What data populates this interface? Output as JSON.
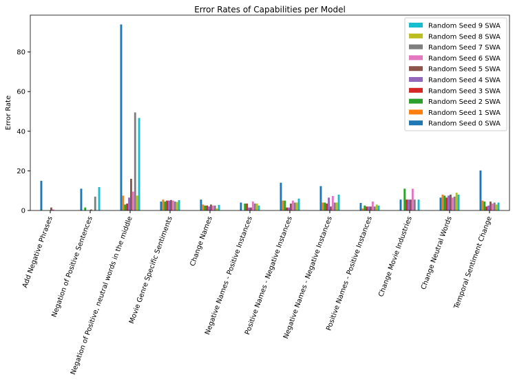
{
  "chart_data": {
    "type": "bar",
    "title": "Error Rates of Capabilities per Model",
    "y_label": "Error Rate",
    "categories": [
      "Add Negative Phrases",
      "Negation of Positive Sentences",
      "Negation of Positive, neutral words in the middle",
      "Movie Genre Specific Sentiments",
      "Change Names",
      "Negative Names - Positive Instances",
      "Positive Names - Negative Instances",
      "Negative Names - Negative Instances",
      "Positive Names - Positive Instances",
      "Change Movie Industries",
      "Change Neutral Words",
      "Temporal Sentiment Change"
    ],
    "series": [
      {
        "name": "Random Seed 0 SWA",
        "color": "#1f77b4",
        "values": [
          15,
          11,
          93.9,
          4.5,
          5.5,
          4,
          14,
          12.3,
          3.8,
          5.5,
          6.5,
          20.2
        ]
      },
      {
        "name": "Random Seed 1 SWA",
        "color": "#ff7f0e",
        "values": [
          0,
          0,
          7.5,
          5.5,
          3,
          0,
          5,
          4,
          1,
          0,
          8,
          5
        ]
      },
      {
        "name": "Random Seed 2 SWA",
        "color": "#2ca02c",
        "values": [
          0,
          1.5,
          3,
          4.5,
          2.5,
          3.5,
          5,
          4,
          2.5,
          11,
          7.5,
          4.5
        ]
      },
      {
        "name": "Random Seed 3 SWA",
        "color": "#d62728",
        "values": [
          0,
          0,
          3.5,
          5,
          2.5,
          3.5,
          1.5,
          3.5,
          2,
          5.5,
          6.5,
          2
        ]
      },
      {
        "name": "Random Seed 4 SWA",
        "color": "#9467bd",
        "values": [
          0,
          0,
          6.5,
          5,
          2,
          1.5,
          1.5,
          6.5,
          2,
          5.5,
          7.5,
          2.5
        ]
      },
      {
        "name": "Random Seed 5 SWA",
        "color": "#8c564b",
        "values": [
          1.5,
          0.5,
          16,
          5.3,
          3,
          1.5,
          3.5,
          2,
          2,
          5.5,
          8,
          4.5
        ]
      },
      {
        "name": "Random Seed 6 SWA",
        "color": "#e377c2",
        "values": [
          0.5,
          0,
          9.5,
          5,
          2.5,
          4.5,
          5,
          7.3,
          4.5,
          11,
          6.5,
          3.5
        ]
      },
      {
        "name": "Random Seed 7 SWA",
        "color": "#7f7f7f",
        "values": [
          0,
          7,
          49.5,
          4.5,
          2.5,
          3.5,
          4,
          4,
          2,
          5.5,
          7,
          4
        ]
      },
      {
        "name": "Random Seed 8 SWA",
        "color": "#bcbd22",
        "values": [
          0,
          0,
          7.5,
          4.3,
          1,
          3.5,
          4,
          4,
          3,
          0,
          9,
          3
        ]
      },
      {
        "name": "Random Seed 9 SWA",
        "color": "#17becf",
        "values": [
          0,
          11.8,
          46.7,
          5.2,
          2.8,
          2.5,
          6,
          8,
          2.5,
          5.5,
          8,
          4
        ]
      }
    ],
    "ylim": [
      0,
      98.6
    ],
    "yticks": [
      0,
      20,
      40,
      60,
      80
    ],
    "grid": false,
    "legend": "upper right"
  }
}
